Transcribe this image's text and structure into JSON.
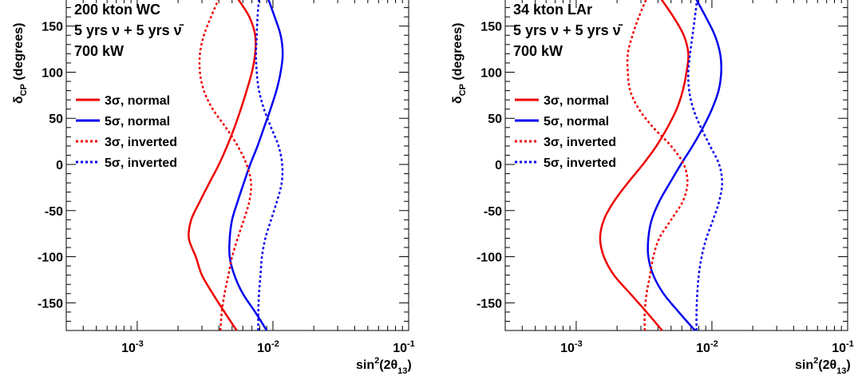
{
  "chart_data": [
    {
      "type": "line",
      "title": "",
      "annotations": [
        "200 kton WC",
        "5 yrs ν + 5 yrs ν̄",
        "700 kW"
      ],
      "xlabel": "sin²(2θ₁₃)",
      "ylabel": "δ_CP (degrees)",
      "xscale": "log",
      "xlim": [
        0.0003,
        0.1
      ],
      "ylim": [
        -180,
        180
      ],
      "yticks": [
        -150,
        -100,
        -50,
        0,
        50,
        100,
        150
      ],
      "xtick_labels": [
        {
          "base": "10",
          "exp": "-3",
          "value": 0.001
        },
        {
          "base": "10",
          "exp": "-2",
          "value": 0.01
        },
        {
          "base": "10",
          "exp": "-1",
          "value": 0.1
        }
      ],
      "legend_placement": "middle-left",
      "series": [
        {
          "name": "3σ, normal",
          "color": "#ee0000",
          "dash": "solid",
          "points": [
            [
              0.0054,
              -180
            ],
            [
              0.0044,
              -160
            ],
            [
              0.0036,
              -140
            ],
            [
              0.003,
              -120
            ],
            [
              0.0027,
              -100
            ],
            [
              0.0024,
              -80
            ],
            [
              0.0025,
              -60
            ],
            [
              0.0029,
              -40
            ],
            [
              0.0034,
              -20
            ],
            [
              0.004,
              0
            ],
            [
              0.0046,
              20
            ],
            [
              0.0052,
              40
            ],
            [
              0.0058,
              60
            ],
            [
              0.0064,
              80
            ],
            [
              0.007,
              100
            ],
            [
              0.0074,
              120
            ],
            [
              0.0074,
              140
            ],
            [
              0.0067,
              160
            ],
            [
              0.0055,
              180
            ]
          ]
        },
        {
          "name": "5σ, normal",
          "color": "#0000ee",
          "dash": "solid",
          "points": [
            [
              0.009,
              -180
            ],
            [
              0.0074,
              -160
            ],
            [
              0.006,
              -140
            ],
            [
              0.0052,
              -120
            ],
            [
              0.0048,
              -100
            ],
            [
              0.0048,
              -80
            ],
            [
              0.005,
              -60
            ],
            [
              0.0055,
              -40
            ],
            [
              0.0061,
              -20
            ],
            [
              0.0068,
              0
            ],
            [
              0.0077,
              20
            ],
            [
              0.0086,
              40
            ],
            [
              0.0096,
              60
            ],
            [
              0.0106,
              80
            ],
            [
              0.0114,
              100
            ],
            [
              0.0118,
              120
            ],
            [
              0.0114,
              140
            ],
            [
              0.0103,
              160
            ],
            [
              0.0092,
              180
            ]
          ]
        },
        {
          "name": "3σ, inverted",
          "color": "#ee0000",
          "dash": "dotted",
          "points": [
            [
              0.0041,
              -180
            ],
            [
              0.0042,
              -160
            ],
            [
              0.0044,
              -140
            ],
            [
              0.0047,
              -120
            ],
            [
              0.005,
              -100
            ],
            [
              0.0055,
              -80
            ],
            [
              0.0061,
              -60
            ],
            [
              0.0067,
              -40
            ],
            [
              0.0069,
              -20
            ],
            [
              0.0064,
              0
            ],
            [
              0.0055,
              20
            ],
            [
              0.0045,
              40
            ],
            [
              0.0036,
              60
            ],
            [
              0.0031,
              80
            ],
            [
              0.0029,
              100
            ],
            [
              0.0029,
              120
            ],
            [
              0.0031,
              140
            ],
            [
              0.0035,
              160
            ],
            [
              0.004,
              180
            ]
          ]
        },
        {
          "name": "5σ, inverted",
          "color": "#0000ee",
          "dash": "dotted",
          "points": [
            [
              0.0078,
              -180
            ],
            [
              0.0078,
              -160
            ],
            [
              0.0079,
              -140
            ],
            [
              0.0081,
              -120
            ],
            [
              0.0083,
              -100
            ],
            [
              0.0088,
              -80
            ],
            [
              0.0097,
              -60
            ],
            [
              0.0107,
              -40
            ],
            [
              0.0116,
              -20
            ],
            [
              0.0117,
              0
            ],
            [
              0.011,
              20
            ],
            [
              0.0097,
              40
            ],
            [
              0.0086,
              60
            ],
            [
              0.0079,
              80
            ],
            [
              0.0076,
              100
            ],
            [
              0.0075,
              120
            ],
            [
              0.0076,
              140
            ],
            [
              0.0077,
              160
            ],
            [
              0.0079,
              180
            ]
          ]
        }
      ]
    },
    {
      "type": "line",
      "title": "",
      "annotations": [
        "34 kton LAr",
        "5 yrs ν + 5 yrs ν̄",
        "700 kW"
      ],
      "xlabel": "sin²(2θ₁₃)",
      "ylabel": "δ_CP (degrees)",
      "xscale": "log",
      "xlim": [
        0.0003,
        0.1
      ],
      "ylim": [
        -180,
        180
      ],
      "yticks": [
        -150,
        -100,
        -50,
        0,
        50,
        100,
        150
      ],
      "xtick_labels": [
        {
          "base": "10",
          "exp": "-3",
          "value": 0.001
        },
        {
          "base": "10",
          "exp": "-2",
          "value": 0.01
        },
        {
          "base": "10",
          "exp": "-1",
          "value": 0.1
        }
      ],
      "legend_placement": "middle-left",
      "series": [
        {
          "name": "3σ, normal",
          "color": "#ee0000",
          "dash": "solid",
          "points": [
            [
              0.0043,
              -180
            ],
            [
              0.0033,
              -160
            ],
            [
              0.0025,
              -140
            ],
            [
              0.0019,
              -120
            ],
            [
              0.0016,
              -100
            ],
            [
              0.0015,
              -80
            ],
            [
              0.0016,
              -60
            ],
            [
              0.0019,
              -40
            ],
            [
              0.0024,
              -20
            ],
            [
              0.0031,
              0
            ],
            [
              0.0039,
              20
            ],
            [
              0.0047,
              40
            ],
            [
              0.0055,
              60
            ],
            [
              0.0061,
              80
            ],
            [
              0.0065,
              100
            ],
            [
              0.0067,
              120
            ],
            [
              0.0062,
              140
            ],
            [
              0.0052,
              160
            ],
            [
              0.0042,
              180
            ]
          ]
        },
        {
          "name": "5σ, normal",
          "color": "#0000ee",
          "dash": "solid",
          "points": [
            [
              0.0075,
              -180
            ],
            [
              0.0057,
              -160
            ],
            [
              0.0044,
              -140
            ],
            [
              0.0037,
              -120
            ],
            [
              0.0034,
              -100
            ],
            [
              0.0034,
              -80
            ],
            [
              0.0036,
              -60
            ],
            [
              0.0041,
              -40
            ],
            [
              0.0049,
              -20
            ],
            [
              0.0059,
              0
            ],
            [
              0.0072,
              20
            ],
            [
              0.0086,
              40
            ],
            [
              0.01,
              60
            ],
            [
              0.0112,
              80
            ],
            [
              0.0117,
              100
            ],
            [
              0.0115,
              120
            ],
            [
              0.0105,
              140
            ],
            [
              0.009,
              160
            ],
            [
              0.0076,
              180
            ]
          ]
        },
        {
          "name": "3σ, inverted",
          "color": "#ee0000",
          "dash": "dotted",
          "points": [
            [
              0.0032,
              -180
            ],
            [
              0.0032,
              -160
            ],
            [
              0.0033,
              -140
            ],
            [
              0.0035,
              -120
            ],
            [
              0.0037,
              -100
            ],
            [
              0.0041,
              -80
            ],
            [
              0.005,
              -60
            ],
            [
              0.0061,
              -40
            ],
            [
              0.0066,
              -20
            ],
            [
              0.0062,
              0
            ],
            [
              0.005,
              20
            ],
            [
              0.0037,
              40
            ],
            [
              0.0029,
              60
            ],
            [
              0.0025,
              80
            ],
            [
              0.0024,
              100
            ],
            [
              0.0024,
              120
            ],
            [
              0.0026,
              140
            ],
            [
              0.0029,
              160
            ],
            [
              0.0033,
              180
            ]
          ]
        },
        {
          "name": "5σ, inverted",
          "color": "#0000ee",
          "dash": "dotted",
          "points": [
            [
              0.0077,
              -180
            ],
            [
              0.0077,
              -160
            ],
            [
              0.0078,
              -140
            ],
            [
              0.008,
              -120
            ],
            [
              0.0084,
              -100
            ],
            [
              0.0091,
              -80
            ],
            [
              0.0102,
              -60
            ],
            [
              0.0113,
              -40
            ],
            [
              0.0119,
              -20
            ],
            [
              0.0113,
              0
            ],
            [
              0.0097,
              20
            ],
            [
              0.0083,
              40
            ],
            [
              0.0073,
              60
            ],
            [
              0.0068,
              80
            ],
            [
              0.0067,
              100
            ],
            [
              0.0069,
              120
            ],
            [
              0.0072,
              140
            ],
            [
              0.0075,
              160
            ],
            [
              0.0078,
              180
            ]
          ]
        }
      ]
    }
  ]
}
